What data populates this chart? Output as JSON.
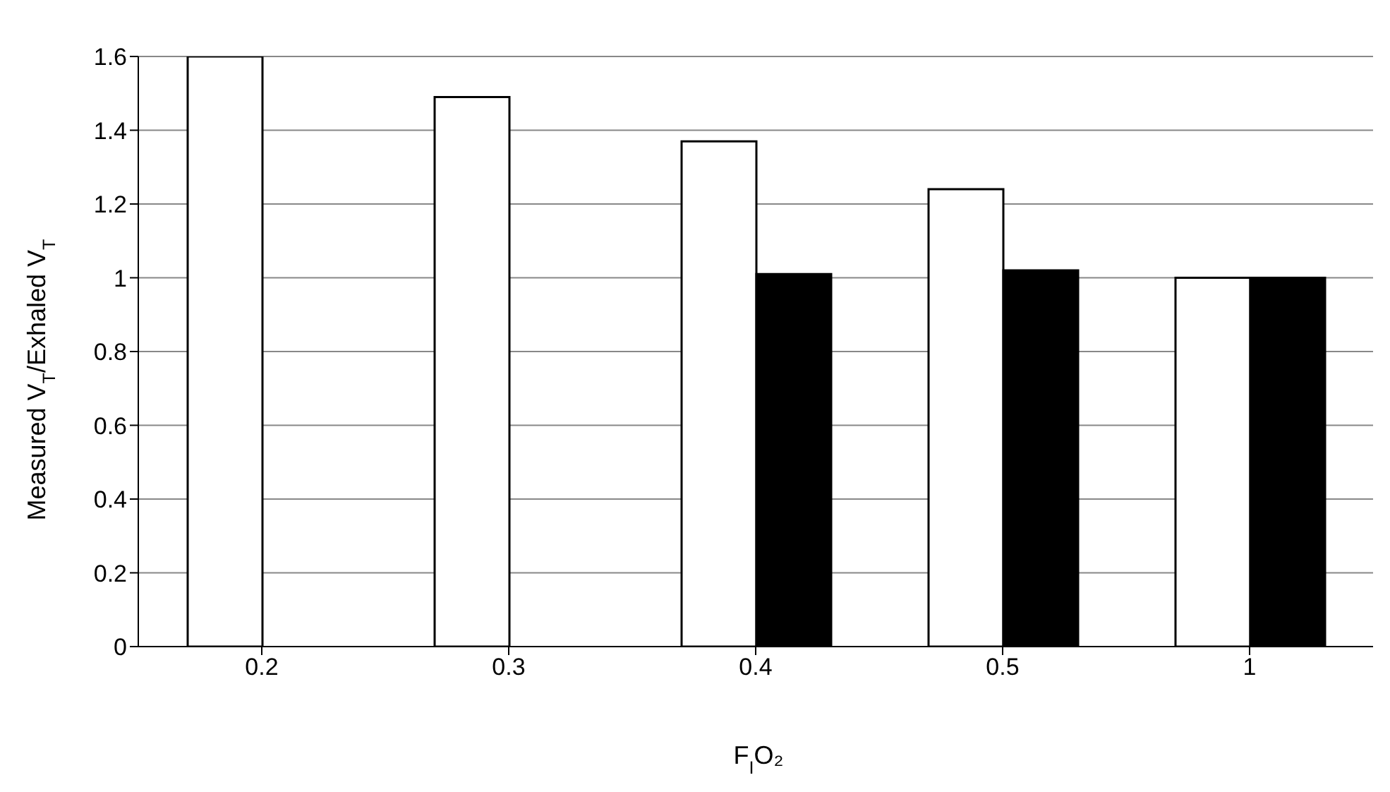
{
  "chart_data": {
    "type": "bar",
    "xlabel": "F$_{I}$O₂",
    "ylabel": "Measured V$_{T}$/Exhaled V$_{T}$",
    "categories": [
      "0.2",
      "0.3",
      "0.4",
      "0.5",
      "1"
    ],
    "series": [
      {
        "color": "#ffffff",
        "values": [
          1.6,
          1.49,
          1.37,
          1.24,
          1.0
        ]
      },
      {
        "color": "#000000",
        "values": [
          null,
          null,
          1.01,
          1.02,
          1.0
        ]
      }
    ],
    "ylim": [
      0,
      1.6
    ],
    "yticks": [
      0,
      0.2,
      0.4,
      0.6,
      0.8,
      1,
      1.2,
      1.4,
      1.6
    ],
    "grid": "y",
    "legend": false
  }
}
